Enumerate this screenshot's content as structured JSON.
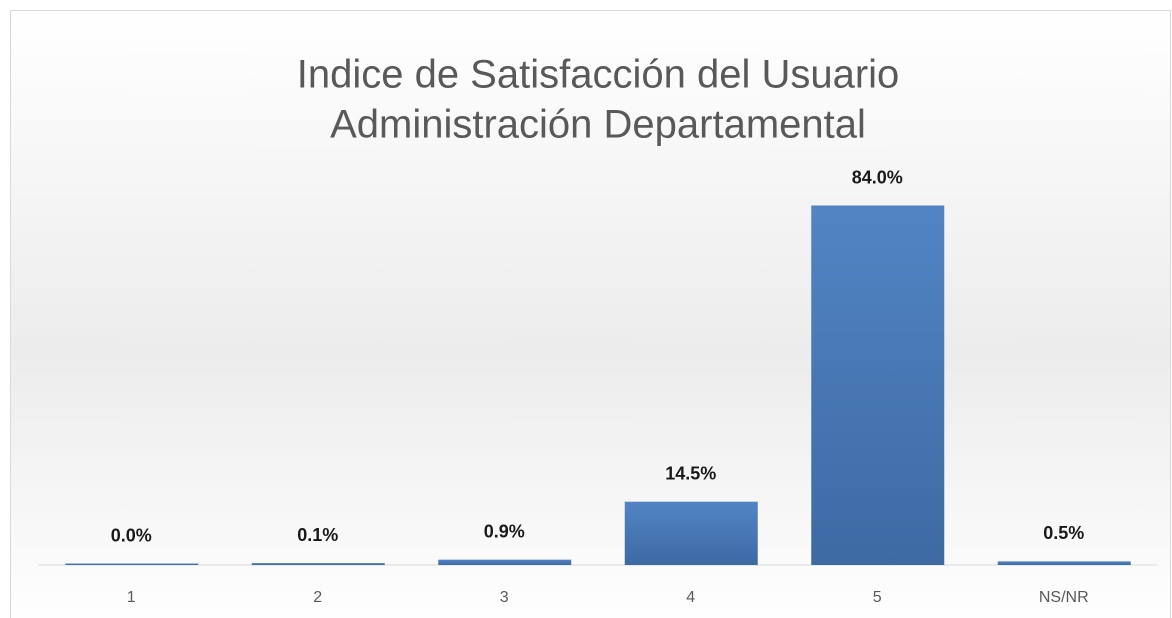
{
  "chart_data": {
    "type": "bar",
    "title": [
      "Indice de Satisfacción del Usuario",
      "Administración Departamental"
    ],
    "categories": [
      "1",
      "2",
      "3",
      "4",
      "5",
      "NS/NR"
    ],
    "values": [
      0,
      0.1,
      0.9,
      14.5,
      84.0,
      0.5
    ],
    "value_labels": [
      "0.0%",
      "0.1%",
      "0.9%",
      "14.5%",
      "84.0%",
      "0.5%"
    ],
    "color": "#4a7ab8"
  }
}
